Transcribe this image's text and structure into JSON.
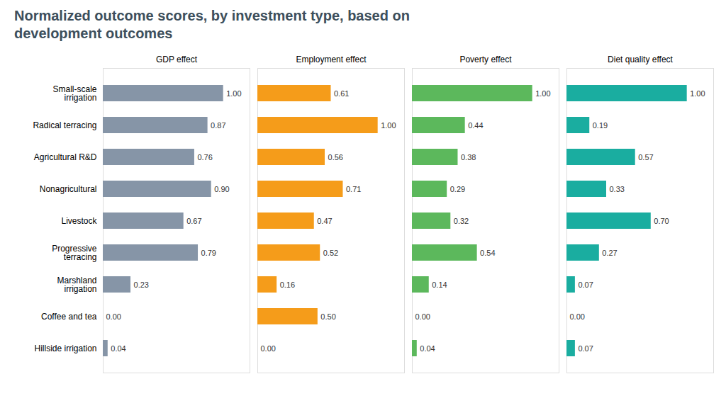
{
  "chart_data": {
    "type": "bar",
    "orientation": "horizontal",
    "title": "Normalized outcome scores, by investment type, based on\ndevelopment outcomes",
    "categories": [
      "Small-scale\nirrigation",
      "Radical terracing",
      "Agricultural R&D",
      "Nonagricultural",
      "Livestock",
      "Progressive\nterracing",
      "Marshland\nirrigation",
      "Coffee and tea",
      "Hillside irrigation"
    ],
    "series": [
      {
        "name": "GDP effect",
        "color": "#8695a7",
        "values": [
          1.0,
          0.87,
          0.76,
          0.9,
          0.67,
          0.79,
          0.23,
          0.0,
          0.04
        ],
        "value_labels": [
          "1.00",
          "0.87",
          "0.76",
          "0.90",
          "0.67",
          "0.79",
          "0.23",
          "0.00",
          "0.04"
        ]
      },
      {
        "name": "Employment effect",
        "color": "#f59c1a",
        "values": [
          0.61,
          1.0,
          0.56,
          0.71,
          0.47,
          0.52,
          0.16,
          0.5,
          0.0
        ],
        "value_labels": [
          "0.61",
          "1.00",
          "0.56",
          "0.71",
          "0.47",
          "0.52",
          "0.16",
          "0.50",
          "0.00"
        ]
      },
      {
        "name": "Poverty effect",
        "color": "#5cb85c",
        "values": [
          1.0,
          0.44,
          0.38,
          0.29,
          0.32,
          0.54,
          0.14,
          0.0,
          0.04
        ],
        "value_labels": [
          "1.00",
          "0.44",
          "0.38",
          "0.29",
          "0.32",
          "0.54",
          "0.14",
          "0.00",
          "0.04"
        ]
      },
      {
        "name": "Diet quality effect",
        "color": "#1aada0",
        "values": [
          1.0,
          0.19,
          0.57,
          0.33,
          0.7,
          0.27,
          0.07,
          0.0,
          0.07
        ],
        "value_labels": [
          "1.00",
          "0.19",
          "0.57",
          "0.33",
          "0.70",
          "0.27",
          "0.07",
          "0.00",
          "0.07"
        ]
      }
    ],
    "xlim": [
      0,
      1.22
    ],
    "tick_labels": "y",
    "data_labels": true,
    "grid": false
  }
}
